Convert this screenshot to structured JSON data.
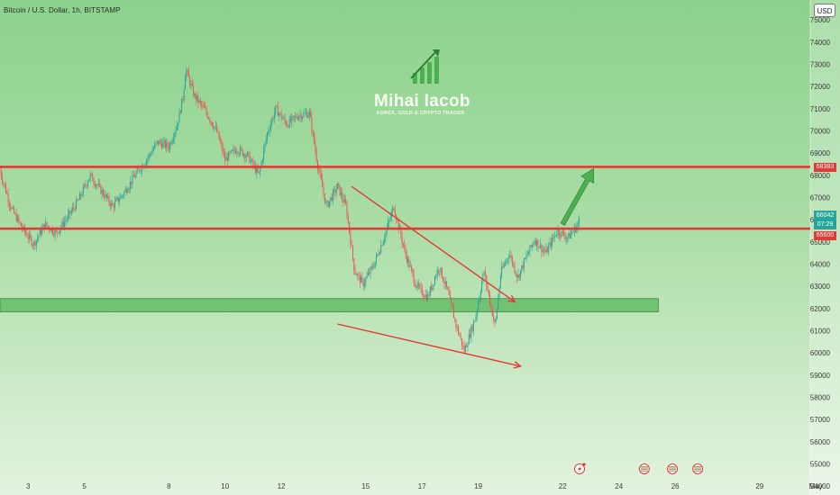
{
  "header": {
    "symbol": "Bitcoin / U.S. Dollar, 1h, BITSTAMP"
  },
  "toolbar": {
    "currency_label": "USD"
  },
  "watermark": {
    "name": "Mihai Iacob",
    "tagline": "FOREX, GOLD & CRYPTO TRADER"
  },
  "price_badges": {
    "resistance": "68383",
    "current_price": "66042",
    "countdown": "07:29",
    "support": "65600"
  },
  "colors": {
    "up_candle": "#26a69a",
    "down_candle": "#ef5350",
    "level_line": "#e53935",
    "zone_fill": "#4caf50",
    "projection_arrow": "#4caf50"
  },
  "chart_data": {
    "type": "candlestick",
    "title": "Bitcoin / U.S. Dollar, 1h, BITSTAMP",
    "ylim": [
      53600,
      75900
    ],
    "y_ticks": [
      54000,
      55000,
      56000,
      57000,
      58000,
      59000,
      60000,
      61000,
      62000,
      63000,
      64000,
      65000,
      66000,
      67000,
      68000,
      69000,
      70000,
      71000,
      72000,
      73000,
      74000,
      75000
    ],
    "x_range": [
      2.0,
      30.8
    ],
    "x_ticks": [
      {
        "label": "3",
        "day": 3
      },
      {
        "label": "5",
        "day": 5
      },
      {
        "label": "8",
        "day": 8
      },
      {
        "label": "10",
        "day": 10
      },
      {
        "label": "12",
        "day": 12
      },
      {
        "label": "15",
        "day": 15
      },
      {
        "label": "17",
        "day": 17
      },
      {
        "label": "19",
        "day": 19
      },
      {
        "label": "22",
        "day": 22
      },
      {
        "label": "24",
        "day": 24
      },
      {
        "label": "26",
        "day": 26
      },
      {
        "label": "29",
        "day": 29
      },
      {
        "label": "May",
        "day": 31
      }
    ],
    "horizontal_levels": [
      68383,
      65600
    ],
    "zone": {
      "from": 61850,
      "to": 62450,
      "day_start": 2.0,
      "day_end": 25.4
    },
    "falling_wedge": [
      {
        "from": [
          14.5,
          67500
        ],
        "to": [
          20.3,
          62300
        ]
      },
      {
        "from": [
          14.0,
          61300
        ],
        "to": [
          20.5,
          59400
        ]
      }
    ],
    "projection": {
      "from": [
        22.0,
        65800
      ],
      "to": [
        23.1,
        68300
      ]
    },
    "event_icons_days": [
      22.6,
      24.9,
      25.9,
      26.8
    ],
    "ohlc_daily_path": [
      [
        2.0,
        68200
      ],
      [
        2.4,
        66500
      ],
      [
        2.8,
        65600
      ],
      [
        3.2,
        64900
      ],
      [
        3.6,
        65800
      ],
      [
        4.0,
        65400
      ],
      [
        4.4,
        66100
      ],
      [
        4.8,
        66900
      ],
      [
        5.2,
        68000
      ],
      [
        5.6,
        67300
      ],
      [
        6.0,
        66600
      ],
      [
        6.4,
        67200
      ],
      [
        6.8,
        68000
      ],
      [
        7.2,
        68700
      ],
      [
        7.6,
        69500
      ],
      [
        8.0,
        69300
      ],
      [
        8.3,
        70300
      ],
      [
        8.5,
        71500
      ],
      [
        8.6,
        72800
      ],
      [
        8.9,
        71600
      ],
      [
        9.3,
        70900
      ],
      [
        9.7,
        70000
      ],
      [
        10.0,
        68700
      ],
      [
        10.4,
        69200
      ],
      [
        10.8,
        68900
      ],
      [
        11.2,
        68000
      ],
      [
        11.5,
        69900
      ],
      [
        11.8,
        71000
      ],
      [
        12.2,
        70300
      ],
      [
        12.6,
        70700
      ],
      [
        13.0,
        70800
      ],
      [
        13.3,
        68400
      ],
      [
        13.6,
        66600
      ],
      [
        14.0,
        67500
      ],
      [
        14.3,
        66600
      ],
      [
        14.6,
        63700
      ],
      [
        14.9,
        63100
      ],
      [
        15.3,
        64000
      ],
      [
        15.7,
        65400
      ],
      [
        16.0,
        66600
      ],
      [
        16.4,
        64500
      ],
      [
        16.8,
        63000
      ],
      [
        17.2,
        62500
      ],
      [
        17.6,
        63900
      ],
      [
        17.9,
        62800
      ],
      [
        18.2,
        61300
      ],
      [
        18.5,
        60100
      ],
      [
        18.9,
        61600
      ],
      [
        19.2,
        63700
      ],
      [
        19.4,
        62400
      ],
      [
        19.6,
        61200
      ],
      [
        19.8,
        63600
      ],
      [
        20.1,
        64500
      ],
      [
        20.4,
        63400
      ],
      [
        20.7,
        64300
      ],
      [
        21.0,
        65100
      ],
      [
        21.4,
        64500
      ],
      [
        21.8,
        65500
      ],
      [
        22.2,
        65200
      ],
      [
        22.5,
        65700
      ],
      [
        22.6,
        66042
      ]
    ]
  }
}
